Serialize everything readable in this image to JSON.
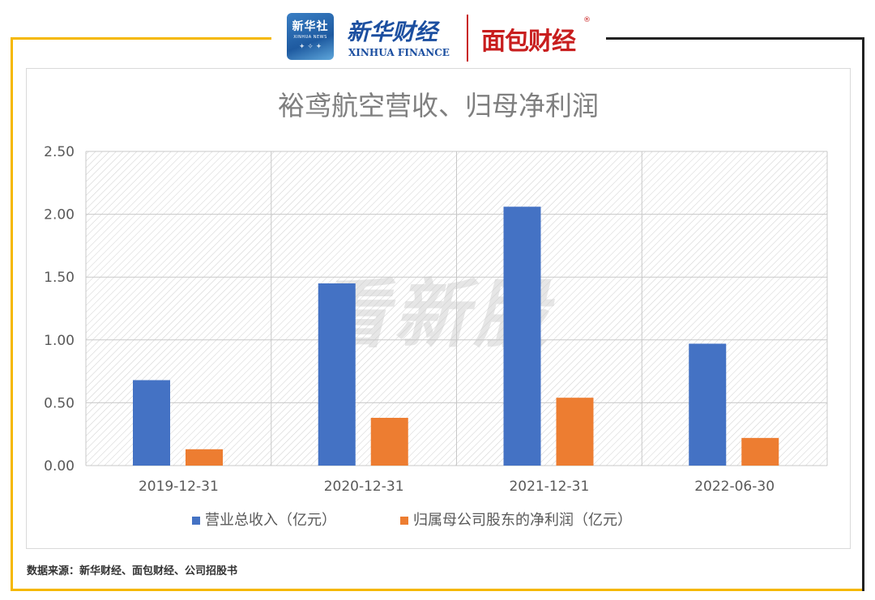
{
  "header": {
    "badge_cn": "新华社",
    "badge_en": "XINHUA NEWS",
    "finance_cn": "新华财经",
    "finance_en": "XINHUA FINANCE",
    "mianbao": "面包财经",
    "mianbao_reg": "®"
  },
  "watermark": "看新股",
  "source_note": "数据来源：新华财经、面包财经、公司招股书",
  "colors": {
    "series1": "#4472c4",
    "series2": "#ed7d31",
    "frame_yellow": "#f5b800",
    "frame_black": "#222222"
  },
  "chart_data": {
    "type": "bar",
    "title": "裕鸢航空营收、归母净利润",
    "categories": [
      "2019-12-31",
      "2020-12-31",
      "2021-12-31",
      "2022-06-30"
    ],
    "series": [
      {
        "name": "营业总收入（亿元）",
        "values": [
          0.68,
          1.45,
          2.06,
          0.97
        ]
      },
      {
        "name": "归属母公司股东的净利润（亿元）",
        "values": [
          0.13,
          0.38,
          0.54,
          0.22
        ]
      }
    ],
    "yticks": [
      "0.00",
      "0.50",
      "1.00",
      "1.50",
      "2.00",
      "2.50"
    ],
    "ylim": [
      0,
      2.5
    ],
    "grid": true,
    "legend_position": "bottom"
  }
}
